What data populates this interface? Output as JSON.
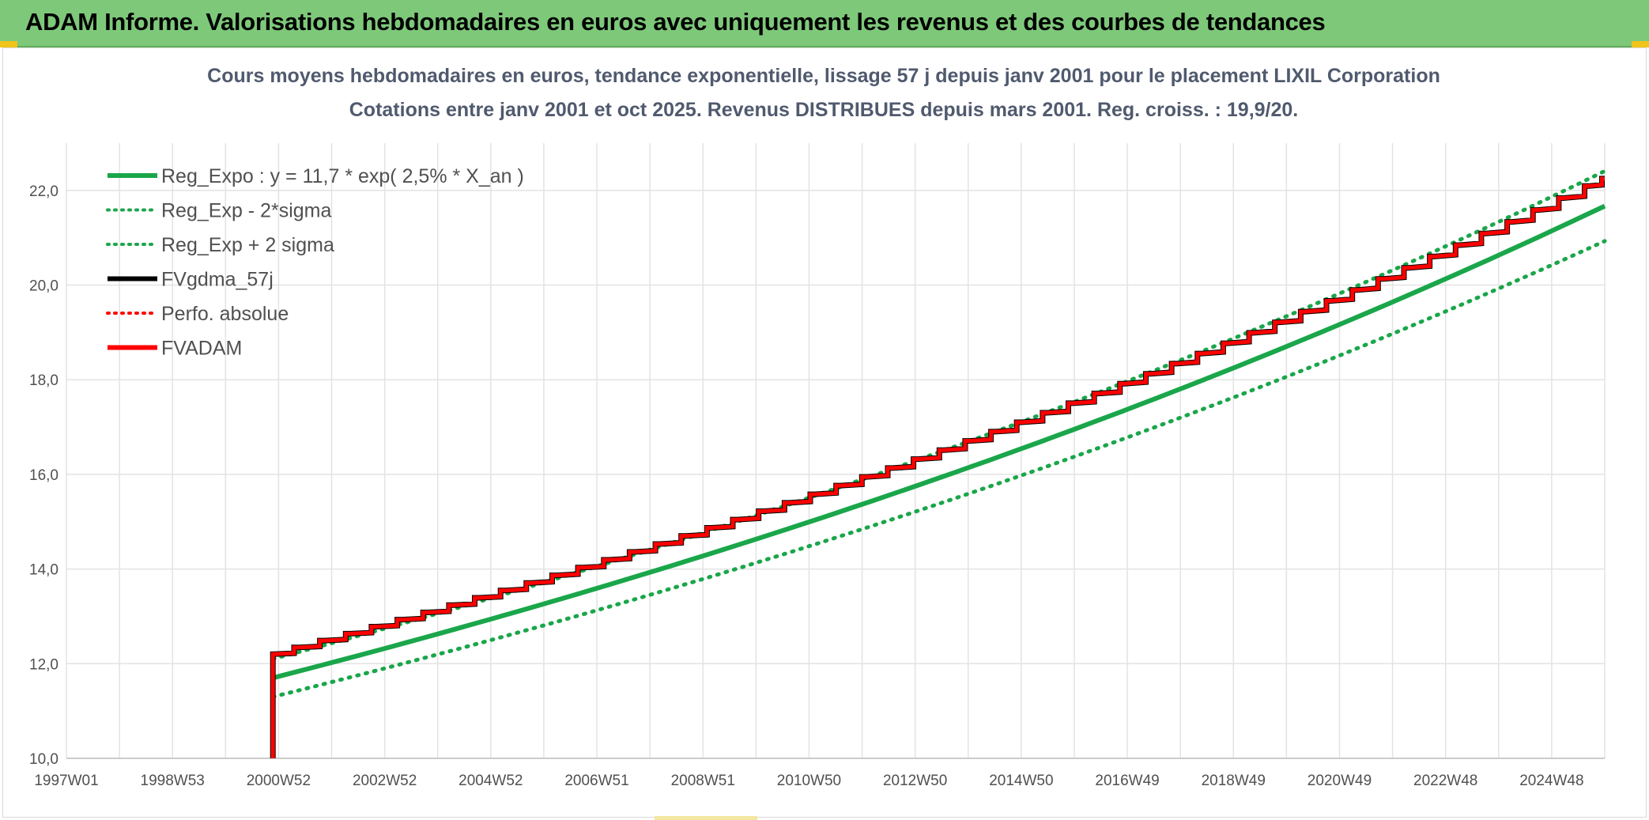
{
  "banner": {
    "title": "ADAM Informe. Valorisations hebdomadaires en euros avec uniquement les revenus et des courbes de tendances"
  },
  "colors": {
    "banner_bg": "#7ec87a",
    "green": "#1aa64a",
    "black": "#000000",
    "red": "#ff0000",
    "grid": "#e3e3e3"
  },
  "chart_data": {
    "type": "line",
    "title_lines": [
      "Cours moyens hebdomadaires en euros, tendance exponentielle, lissage 57 j depuis janv 2001 pour le placement LIXIL Corporation",
      "Cotations entre janv 2001 et oct 2025. Revenus DISTRIBUES depuis mars 2001. Reg. croiss. : 19,9/20."
    ],
    "x_tick_labels": [
      "1997W01",
      "1998W53",
      "2000W52",
      "2002W52",
      "2004W52",
      "2006W51",
      "2008W51",
      "2010W50",
      "2012W50",
      "2014W50",
      "2016W49",
      "2018W49",
      "2020W49",
      "2022W48",
      "2024W48"
    ],
    "x_range_years": [
      1997.0,
      2026.8
    ],
    "ylim": [
      10,
      23
    ],
    "y_ticks": [
      10,
      12,
      14,
      16,
      18,
      20,
      22
    ],
    "y_tick_labels": [
      "10,0",
      "12,0",
      "14,0",
      "16,0",
      "18,0",
      "20,0",
      "22,0"
    ],
    "grid": true,
    "legend_position": "top-left",
    "series": [
      {
        "name": "Reg_Expo : y = 11,7 * exp( 2,5% *  X_an )",
        "color": "#1aa64a",
        "style": "solid",
        "x": [
          2001.0,
          2026.8
        ],
        "y": [
          11.7,
          21.67
        ]
      },
      {
        "name": "Reg_Exp - 2*sigma",
        "color": "#1aa64a",
        "style": "dotted",
        "x": [
          2001.0,
          2026.8
        ],
        "y": [
          11.3,
          20.93
        ]
      },
      {
        "name": "Reg_Exp + 2 sigma",
        "color": "#1aa64a",
        "style": "dotted",
        "x": [
          2001.0,
          2026.8
        ],
        "y": [
          12.1,
          22.41
        ]
      },
      {
        "name": "FVgdma_57j",
        "color": "#000000",
        "style": "solid",
        "x": [
          2001.0,
          2026.8
        ],
        "y": [
          12.2,
          22.25
        ]
      },
      {
        "name": "Perfo. absolue",
        "color": "#ff0000",
        "style": "dotted",
        "x": [
          2001.0,
          2026.8
        ],
        "y": [
          12.2,
          22.25
        ]
      },
      {
        "name": "FVADAM",
        "color": "#ff0000",
        "style": "solid",
        "x": [
          2001.0,
          2026.8
        ],
        "y": [
          12.2,
          22.25
        ]
      }
    ],
    "step_series": {
      "start_year": 2001.0,
      "start_value": 12.2,
      "end_year": 2026.8,
      "end_value": 22.25,
      "step_interval_years": 0.5,
      "drop_from_value": 10.0
    }
  }
}
